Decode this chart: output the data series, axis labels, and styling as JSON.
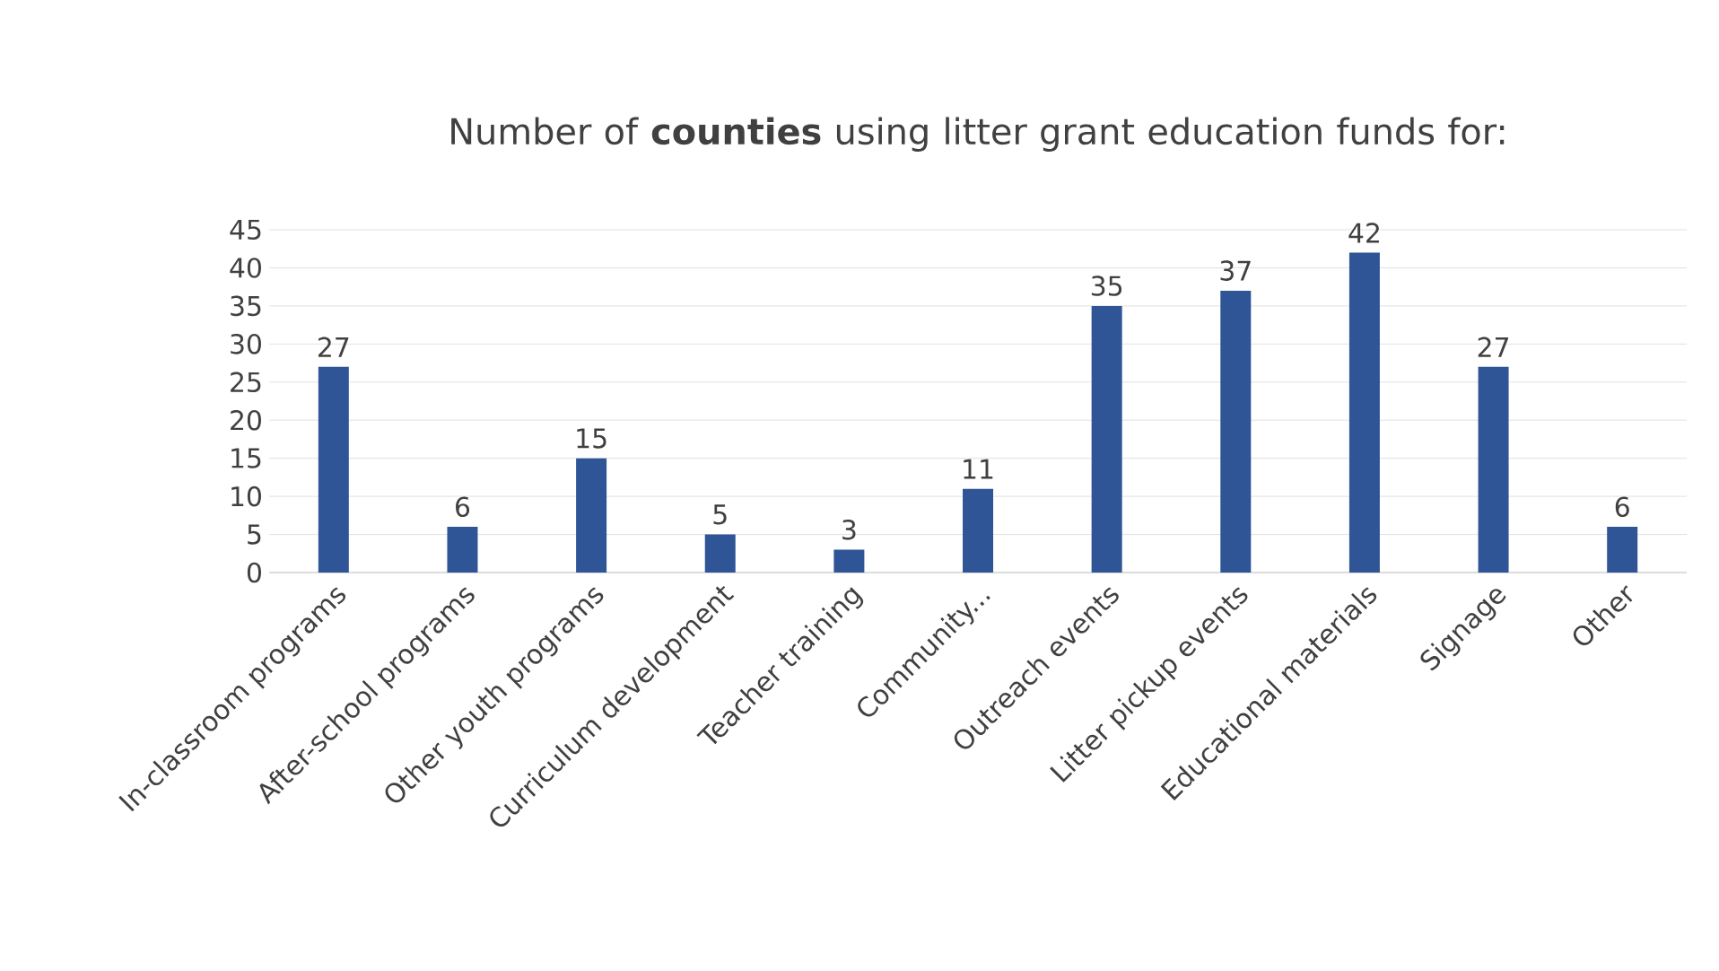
{
  "chart_data": {
    "type": "bar",
    "title": "Number of **counties** using litter grant education funds for:",
    "categories": [
      "In-classroom programs",
      "After-school programs",
      "Other youth programs",
      "Curriculum development",
      "Teacher training",
      "Community...",
      "Outreach events",
      "Litter pickup events",
      "Educational materials",
      "Signage",
      "Other"
    ],
    "values": [
      27,
      6,
      15,
      5,
      3,
      11,
      35,
      37,
      42,
      27,
      6
    ],
    "color": "#2f5597",
    "ylim": [
      0,
      45
    ],
    "yticks": [
      0,
      5,
      10,
      15,
      20,
      25,
      30,
      35,
      40,
      45
    ],
    "grid": "y",
    "data_labels": true
  }
}
